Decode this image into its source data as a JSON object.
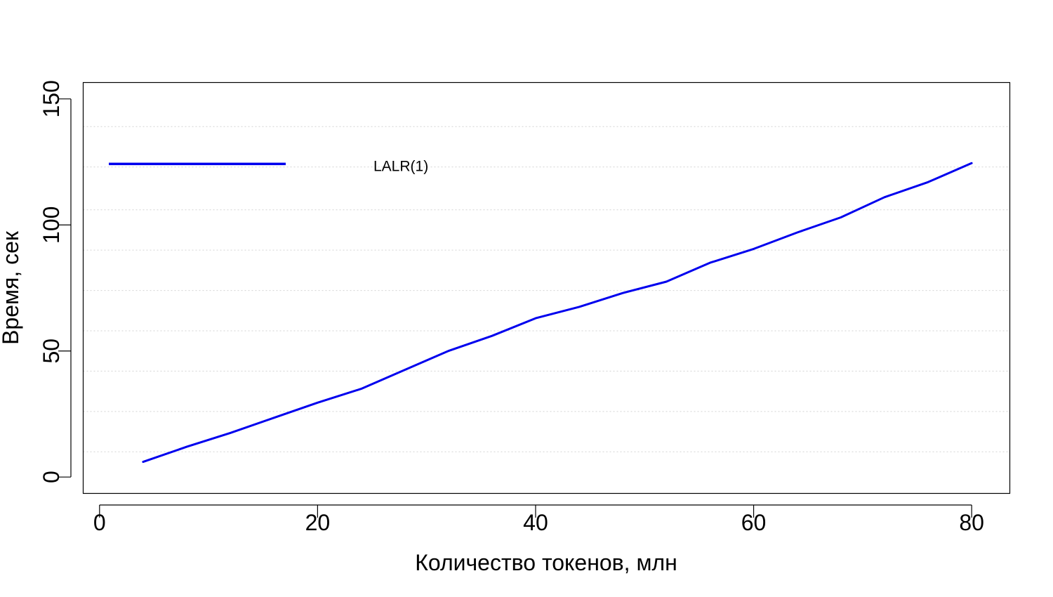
{
  "chart_data": {
    "type": "line",
    "xlabel": "Количество токенов, млн",
    "ylabel": "Время, сек",
    "xlim": [
      -1.5,
      83.5
    ],
    "ylim": [
      -6.5,
      156.5
    ],
    "x_ticks": [
      0,
      20,
      40,
      60,
      80
    ],
    "y_ticks": [
      0,
      50,
      100,
      150
    ],
    "grid": true,
    "grid_y_values": [
      10,
      26,
      42,
      58,
      74,
      90,
      106,
      123,
      139
    ],
    "legend": {
      "position": "top-left"
    },
    "series": [
      {
        "name": "LALR(1)",
        "color": "#0000ee",
        "x": [
          4,
          8,
          12,
          16,
          20,
          24,
          28,
          32,
          36,
          40,
          44,
          48,
          52,
          56,
          60,
          64,
          68,
          72,
          76,
          80
        ],
        "y": [
          6,
          12,
          17.5,
          23.5,
          29.5,
          35,
          42.5,
          50,
          56,
          63,
          67.5,
          73,
          77.5,
          85,
          90.5,
          97,
          103,
          111,
          117,
          124.5
        ]
      }
    ]
  }
}
